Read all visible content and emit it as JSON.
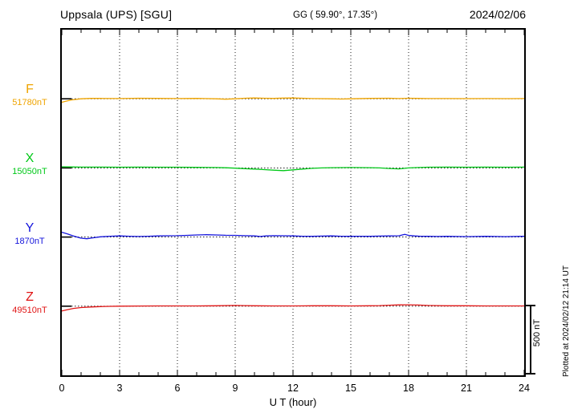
{
  "header": {
    "station": "Uppsala (UPS)  [SGU]",
    "coords": "GG ( 59.90°, 17.35°)",
    "date": "2024/02/06"
  },
  "footer": {
    "plotted_text": "Plotted at 2024/02/12 21:14 UT"
  },
  "chart_data": {
    "type": "line",
    "title": "Uppsala (UPS) [SGU] magnetogram 2024/02/06",
    "xlabel": "U T (hour)",
    "x_range": [
      0,
      24
    ],
    "x_ticks": [
      0,
      3,
      6,
      9,
      12,
      15,
      18,
      21,
      24
    ],
    "grid": "dotted vertical lines every 3 hours; dotted horizontal baseline per component",
    "scale_bar_nT": 500,
    "scale_bar_label": "500 nT",
    "series": [
      {
        "name": "F",
        "label": "F",
        "value_label": "51780nT",
        "baseline_nT": 51780,
        "color": "#efa400",
        "points": [
          [
            0,
            -25
          ],
          [
            0.2,
            -18
          ],
          [
            0.5,
            -8
          ],
          [
            1,
            0
          ],
          [
            1.5,
            3
          ],
          [
            2,
            3
          ],
          [
            3,
            2
          ],
          [
            4,
            4
          ],
          [
            5,
            3
          ],
          [
            6,
            2
          ],
          [
            7,
            3
          ],
          [
            8,
            0
          ],
          [
            8.5,
            -3
          ],
          [
            9,
            0
          ],
          [
            9.5,
            4
          ],
          [
            10,
            6
          ],
          [
            10.5,
            4
          ],
          [
            11,
            3
          ],
          [
            11.5,
            5
          ],
          [
            12,
            6
          ],
          [
            12.5,
            4
          ],
          [
            13,
            2
          ],
          [
            14,
            0
          ],
          [
            14.5,
            -2
          ],
          [
            15,
            0
          ],
          [
            16,
            3
          ],
          [
            17,
            4
          ],
          [
            17.5,
            2
          ],
          [
            18,
            4
          ],
          [
            18.5,
            3
          ],
          [
            19,
            2
          ],
          [
            20,
            2
          ],
          [
            21,
            1
          ],
          [
            22,
            2
          ],
          [
            23,
            1
          ],
          [
            24,
            2
          ]
        ]
      },
      {
        "name": "X",
        "label": "X",
        "value_label": "15050nT",
        "baseline_nT": 15050,
        "color": "#00c818",
        "points": [
          [
            0,
            8
          ],
          [
            0.5,
            7
          ],
          [
            1,
            6
          ],
          [
            2,
            6
          ],
          [
            3,
            5
          ],
          [
            4,
            6
          ],
          [
            5,
            5
          ],
          [
            6,
            5
          ],
          [
            7,
            4
          ],
          [
            8,
            3
          ],
          [
            8.5,
            1
          ],
          [
            9,
            -2
          ],
          [
            9.5,
            -5
          ],
          [
            10,
            -8
          ],
          [
            10.5,
            -12
          ],
          [
            11,
            -16
          ],
          [
            11.5,
            -20
          ],
          [
            12,
            -14
          ],
          [
            12.5,
            -8
          ],
          [
            13,
            -3
          ],
          [
            13.5,
            0
          ],
          [
            14,
            2
          ],
          [
            15,
            3
          ],
          [
            16,
            2
          ],
          [
            16.5,
            0
          ],
          [
            17,
            -4
          ],
          [
            17.5,
            -7
          ],
          [
            18,
            0
          ],
          [
            18.5,
            3
          ],
          [
            19,
            5
          ],
          [
            20,
            6
          ],
          [
            21,
            5
          ],
          [
            22,
            6
          ],
          [
            23,
            5
          ],
          [
            24,
            6
          ]
        ]
      },
      {
        "name": "Y",
        "label": "Y",
        "value_label": "1870nT",
        "baseline_nT": 1870,
        "color": "#1414dc",
        "points": [
          [
            0,
            35
          ],
          [
            0.3,
            22
          ],
          [
            0.6,
            8
          ],
          [
            1,
            -8
          ],
          [
            1.3,
            -12
          ],
          [
            1.6,
            -6
          ],
          [
            2,
            2
          ],
          [
            2.5,
            6
          ],
          [
            3,
            8
          ],
          [
            3.5,
            6
          ],
          [
            4,
            4
          ],
          [
            4.5,
            6
          ],
          [
            5,
            8
          ],
          [
            5.5,
            9
          ],
          [
            6,
            10
          ],
          [
            6.5,
            12
          ],
          [
            7,
            15
          ],
          [
            7.5,
            17
          ],
          [
            8,
            15
          ],
          [
            8.5,
            13
          ],
          [
            9,
            12
          ],
          [
            9.5,
            10
          ],
          [
            10,
            8
          ],
          [
            10.3,
            4
          ],
          [
            10.6,
            8
          ],
          [
            11,
            10
          ],
          [
            11.5,
            9
          ],
          [
            12,
            8
          ],
          [
            12.5,
            6
          ],
          [
            13,
            5
          ],
          [
            13.5,
            7
          ],
          [
            14,
            8
          ],
          [
            14.5,
            6
          ],
          [
            15,
            5
          ],
          [
            15.5,
            6
          ],
          [
            16,
            5
          ],
          [
            16.5,
            7
          ],
          [
            17,
            8
          ],
          [
            17.5,
            9
          ],
          [
            17.8,
            20
          ],
          [
            18,
            12
          ],
          [
            18.3,
            8
          ],
          [
            18.6,
            6
          ],
          [
            19,
            5
          ],
          [
            19.5,
            4
          ],
          [
            20,
            5
          ],
          [
            20.5,
            4
          ],
          [
            21,
            3
          ],
          [
            21.5,
            4
          ],
          [
            22,
            5
          ],
          [
            22.5,
            4
          ],
          [
            23,
            3
          ],
          [
            23.5,
            4
          ],
          [
            24,
            5
          ]
        ]
      },
      {
        "name": "Z",
        "label": "Z",
        "value_label": "49510nT",
        "baseline_nT": 49510,
        "color": "#e01414",
        "points": [
          [
            0,
            -35
          ],
          [
            0.3,
            -25
          ],
          [
            0.6,
            -16
          ],
          [
            1,
            -10
          ],
          [
            1.5,
            -6
          ],
          [
            2,
            -3
          ],
          [
            2.5,
            -1
          ],
          [
            3,
            0
          ],
          [
            4,
            1
          ],
          [
            5,
            2
          ],
          [
            6,
            2
          ],
          [
            7,
            2
          ],
          [
            8,
            3
          ],
          [
            9,
            5
          ],
          [
            9.5,
            4
          ],
          [
            10,
            3
          ],
          [
            11,
            2
          ],
          [
            12,
            2
          ],
          [
            13,
            3
          ],
          [
            14,
            3
          ],
          [
            15,
            2
          ],
          [
            16,
            3
          ],
          [
            16.5,
            4
          ],
          [
            17,
            7
          ],
          [
            17.5,
            9
          ],
          [
            18,
            10
          ],
          [
            18.5,
            8
          ],
          [
            19,
            5
          ],
          [
            19.5,
            4
          ],
          [
            20,
            3
          ],
          [
            21,
            3
          ],
          [
            22,
            2
          ],
          [
            23,
            2
          ],
          [
            24,
            2
          ]
        ]
      }
    ]
  }
}
